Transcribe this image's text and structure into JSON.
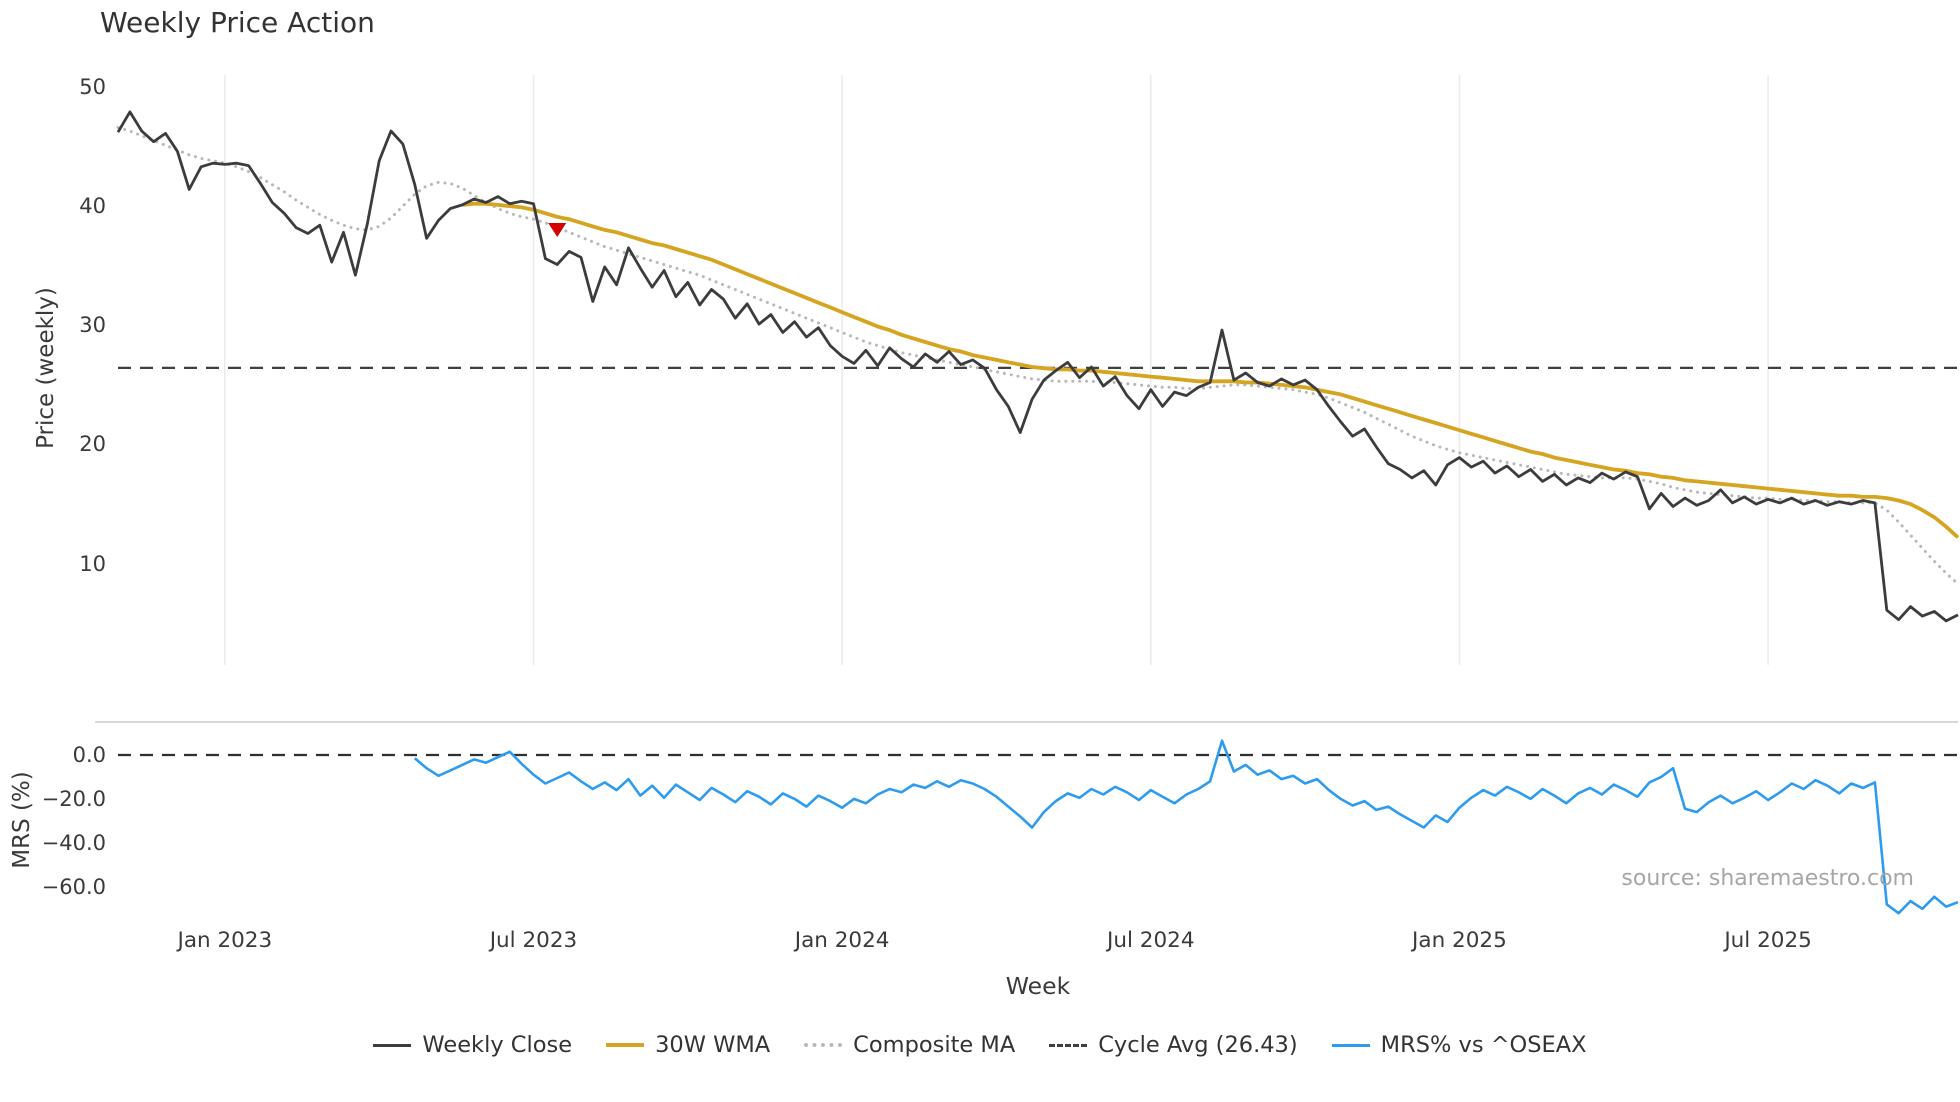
{
  "source_text": "source: sharemaestro.com",
  "legend": {
    "position": "bottom-center",
    "items": [
      {
        "label": "Weekly Close",
        "swatch": "solid",
        "color": "#3C3C3C"
      },
      {
        "label": "30W WMA",
        "swatch": "solid-thick",
        "color": "#D5A421"
      },
      {
        "label": "Composite MA",
        "swatch": "dotted",
        "color": "#B8B8B8"
      },
      {
        "label": "Cycle Avg (26.43)",
        "swatch": "dashed",
        "color": "#3F3F3F"
      },
      {
        "label": "MRS% vs ^OSEAX",
        "swatch": "solid",
        "color": "#2D9BF0"
      }
    ]
  },
  "chart_data": [
    {
      "type": "line",
      "title": "Weekly Price Action",
      "xlabel": "Week",
      "ylabel": "Price (weekly)",
      "x_unit": "weekly observations, early Nov 2022 through late Oct 2025",
      "x_tick_labels": [
        "Jan 2023",
        "Jul 2023",
        "Jan 2024",
        "Jul 2024",
        "Jan 2025",
        "Jul 2025"
      ],
      "x_tick_weeks": [
        9,
        35,
        61,
        87,
        113,
        139
      ],
      "x_range_weeks": [
        0,
        155
      ],
      "ylim": [
        1.5,
        51
      ],
      "grid": "vertical-at-x-ticks",
      "yticks": [
        {
          "v": 50,
          "label": "50"
        },
        {
          "v": 40,
          "label": "40"
        },
        {
          "v": 30,
          "label": "30"
        },
        {
          "v": 20,
          "label": "20"
        },
        {
          "v": 10,
          "label": "10"
        }
      ],
      "hline": {
        "label": "Cycle Avg (26.43)",
        "value": 26.43,
        "style": "dashed",
        "color": "#3F3F3F"
      },
      "markers": [
        {
          "shape": "triangle-down",
          "meaning": "sell-signal",
          "color": "#D40000",
          "week": 37,
          "value": 38.0
        }
      ],
      "series": [
        {
          "name": "Composite MA",
          "data_name": "composite-ma-line",
          "color": "#B8B8B8",
          "style": "dotted",
          "width": 3,
          "values": [
            46.6,
            46.3,
            45.9,
            45.5,
            45.1,
            44.7,
            44.3,
            44.0,
            43.8,
            43.6,
            43.3,
            42.9,
            42.4,
            41.8,
            41.2,
            40.5,
            39.9,
            39.3,
            38.8,
            38.4,
            38.1,
            38.0,
            38.3,
            39.0,
            40.0,
            41.0,
            41.7,
            42.0,
            41.9,
            41.5,
            40.9,
            40.3,
            39.8,
            39.4,
            39.1,
            38.9,
            38.6,
            38.2,
            37.8,
            37.4,
            37.0,
            36.6,
            36.3,
            36.0,
            35.7,
            35.4,
            35.1,
            34.8,
            34.5,
            34.2,
            33.8,
            33.4,
            33.0,
            32.6,
            32.2,
            31.8,
            31.4,
            31.0,
            30.6,
            30.2,
            29.8,
            29.4,
            29.0,
            28.6,
            28.3,
            28.0,
            27.7,
            27.5,
            27.3,
            27.1,
            26.9,
            26.7,
            26.5,
            26.3,
            26.1,
            25.9,
            25.7,
            25.5,
            25.4,
            25.3,
            25.3,
            25.3,
            25.3,
            25.2,
            25.2,
            25.1,
            25.0,
            24.9,
            24.8,
            24.8,
            24.7,
            24.7,
            24.8,
            24.9,
            25.0,
            25.0,
            24.9,
            24.8,
            24.7,
            24.6,
            24.4,
            24.2,
            23.9,
            23.5,
            23.1,
            22.7,
            22.2,
            21.7,
            21.2,
            20.7,
            20.3,
            19.9,
            19.6,
            19.3,
            19.1,
            18.9,
            18.7,
            18.5,
            18.3,
            18.1,
            17.9,
            17.7,
            17.5,
            17.4,
            17.3,
            17.2,
            17.2,
            17.2,
            17.1,
            16.9,
            16.7,
            16.4,
            16.2,
            16.0,
            15.9,
            15.8,
            15.7,
            15.6,
            15.5,
            15.5,
            15.4,
            15.4,
            15.3,
            15.3,
            15.2,
            15.2,
            15.1,
            15.1,
            15.1,
            14.5,
            13.5,
            12.4,
            11.3,
            10.2,
            9.2,
            8.3
          ]
        },
        {
          "name": "30W WMA",
          "data_name": "wma-30w-line",
          "color": "#D5A421",
          "style": "solid",
          "width": 3.8,
          "values": [
            null,
            null,
            null,
            null,
            null,
            null,
            null,
            null,
            null,
            null,
            null,
            null,
            null,
            null,
            null,
            null,
            null,
            null,
            null,
            null,
            null,
            null,
            null,
            null,
            null,
            null,
            null,
            null,
            null,
            40.1,
            40.2,
            40.2,
            40.1,
            40.0,
            39.9,
            39.7,
            39.4,
            39.1,
            38.9,
            38.6,
            38.3,
            38.0,
            37.8,
            37.5,
            37.2,
            36.9,
            36.7,
            36.4,
            36.1,
            35.8,
            35.5,
            35.1,
            34.7,
            34.3,
            33.9,
            33.5,
            33.1,
            32.7,
            32.3,
            31.9,
            31.5,
            31.1,
            30.7,
            30.3,
            29.9,
            29.6,
            29.2,
            28.9,
            28.6,
            28.3,
            28.0,
            27.8,
            27.5,
            27.3,
            27.1,
            26.9,
            26.7,
            26.5,
            26.4,
            26.3,
            26.3,
            26.2,
            26.2,
            26.1,
            26.0,
            25.9,
            25.8,
            25.7,
            25.6,
            25.5,
            25.4,
            25.3,
            25.3,
            25.3,
            25.3,
            25.2,
            25.2,
            25.1,
            25.0,
            24.9,
            24.8,
            24.6,
            24.4,
            24.2,
            23.9,
            23.6,
            23.3,
            23.0,
            22.7,
            22.4,
            22.1,
            21.8,
            21.5,
            21.2,
            20.9,
            20.6,
            20.3,
            20.0,
            19.7,
            19.4,
            19.2,
            18.9,
            18.7,
            18.5,
            18.3,
            18.1,
            17.9,
            17.8,
            17.6,
            17.5,
            17.3,
            17.2,
            17.0,
            16.9,
            16.8,
            16.7,
            16.6,
            16.5,
            16.4,
            16.3,
            16.2,
            16.1,
            16.0,
            15.9,
            15.8,
            15.7,
            15.7,
            15.6,
            15.6,
            15.5,
            15.3,
            15.0,
            14.5,
            13.9,
            13.1,
            12.2
          ]
        },
        {
          "name": "Weekly Close",
          "data_name": "weekly-close-line",
          "color": "#3C3C3C",
          "style": "solid",
          "width": 2.8,
          "values": [
            46.2,
            47.9,
            46.3,
            45.4,
            46.1,
            44.6,
            41.4,
            43.3,
            43.6,
            43.5,
            43.6,
            43.4,
            41.9,
            40.3,
            39.4,
            38.2,
            37.7,
            38.4,
            35.3,
            37.8,
            34.2,
            38.5,
            43.8,
            46.3,
            45.2,
            41.8,
            37.3,
            38.8,
            39.8,
            40.1,
            40.6,
            40.3,
            40.8,
            40.2,
            40.4,
            40.2,
            35.6,
            35.1,
            36.2,
            35.7,
            32.0,
            34.9,
            33.4,
            36.5,
            34.8,
            33.2,
            34.6,
            32.4,
            33.6,
            31.7,
            33.0,
            32.2,
            30.6,
            31.8,
            30.1,
            30.9,
            29.4,
            30.3,
            29.0,
            29.8,
            28.3,
            27.4,
            26.8,
            27.9,
            26.6,
            28.1,
            27.2,
            26.5,
            27.6,
            26.9,
            27.8,
            26.7,
            27.1,
            26.4,
            24.6,
            23.2,
            21.0,
            23.8,
            25.4,
            26.2,
            26.9,
            25.6,
            26.5,
            24.9,
            25.7,
            24.1,
            23.0,
            24.6,
            23.2,
            24.4,
            24.1,
            24.8,
            25.2,
            29.6,
            25.4,
            26.0,
            25.2,
            24.9,
            25.5,
            25.0,
            25.4,
            24.6,
            23.2,
            21.9,
            20.7,
            21.3,
            19.8,
            18.4,
            17.9,
            17.2,
            17.8,
            16.6,
            18.3,
            18.9,
            18.1,
            18.6,
            17.6,
            18.2,
            17.3,
            17.9,
            16.9,
            17.5,
            16.6,
            17.2,
            16.8,
            17.6,
            17.1,
            17.7,
            17.3,
            14.6,
            15.9,
            14.8,
            15.5,
            14.9,
            15.3,
            16.2,
            15.1,
            15.6,
            15.0,
            15.4,
            15.1,
            15.5,
            15.0,
            15.3,
            14.9,
            15.2,
            15.0,
            15.3,
            15.1,
            6.1,
            5.3,
            6.4,
            5.6,
            6.0,
            5.2,
            5.7
          ]
        }
      ]
    },
    {
      "type": "line",
      "ylabel": "MRS (%)",
      "ylim": [
        -76,
        15
      ],
      "yticks": [
        {
          "v": 0,
          "label": "0.0"
        },
        {
          "v": -20,
          "label": "−20.0"
        },
        {
          "v": -40,
          "label": "−40.0"
        },
        {
          "v": -60,
          "label": "−60.0"
        }
      ],
      "hline": {
        "label": "zero line",
        "value": 0,
        "style": "dashed",
        "color": "#2F2F2F"
      },
      "series": [
        {
          "name": "MRS% vs ^OSEAX",
          "data_name": "mrs-line",
          "color": "#2D9BF0",
          "style": "solid",
          "width": 2.6,
          "values": [
            null,
            null,
            null,
            null,
            null,
            null,
            null,
            null,
            null,
            null,
            null,
            null,
            null,
            null,
            null,
            null,
            null,
            null,
            null,
            null,
            null,
            null,
            null,
            null,
            null,
            -1.5,
            -6.0,
            -9.5,
            -7.0,
            -4.5,
            -2.0,
            -3.5,
            -1.0,
            1.5,
            -4.0,
            -9.0,
            -13.0,
            -10.5,
            -8.0,
            -12.0,
            -15.5,
            -12.5,
            -16.0,
            -11.0,
            -18.5,
            -14.0,
            -19.5,
            -13.5,
            -17.0,
            -20.5,
            -15.0,
            -18.0,
            -21.5,
            -16.5,
            -19.0,
            -22.5,
            -17.5,
            -20.0,
            -23.5,
            -18.5,
            -21.0,
            -24.0,
            -20.0,
            -22.0,
            -18.0,
            -15.5,
            -17.0,
            -13.5,
            -15.0,
            -12.0,
            -14.5,
            -11.5,
            -13.0,
            -15.5,
            -19.0,
            -23.5,
            -28.0,
            -33.0,
            -26.0,
            -21.0,
            -17.5,
            -19.5,
            -15.5,
            -18.0,
            -14.5,
            -17.0,
            -20.5,
            -16.0,
            -19.0,
            -22.0,
            -18.0,
            -15.5,
            -12.0,
            6.5,
            -7.5,
            -4.5,
            -9.0,
            -7.0,
            -11.0,
            -9.5,
            -13.0,
            -11.0,
            -16.0,
            -20.0,
            -23.0,
            -21.0,
            -25.0,
            -23.5,
            -27.0,
            -30.0,
            -33.0,
            -27.5,
            -30.5,
            -24.0,
            -19.5,
            -16.0,
            -18.5,
            -14.5,
            -17.0,
            -20.0,
            -15.5,
            -18.5,
            -22.0,
            -17.5,
            -15.0,
            -18.0,
            -13.5,
            -16.0,
            -19.0,
            -12.5,
            -10.0,
            -6.0,
            -24.5,
            -26.0,
            -21.5,
            -18.5,
            -22.0,
            -19.5,
            -16.5,
            -20.5,
            -17.0,
            -13.0,
            -15.5,
            -11.5,
            -14.0,
            -17.5,
            -13.0,
            -15.0,
            -12.5,
            -68.0,
            -72.0,
            -66.5,
            -70.0,
            -64.5,
            -69.0,
            -67.0
          ]
        }
      ]
    }
  ]
}
